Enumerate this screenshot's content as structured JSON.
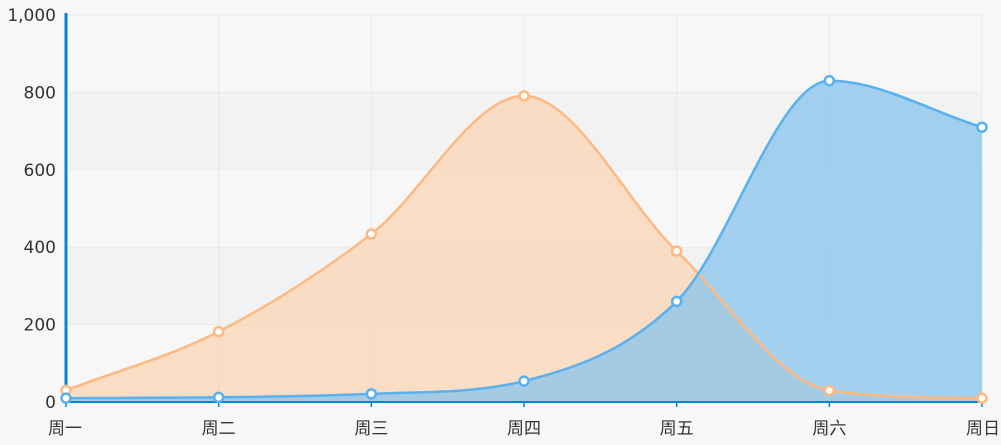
{
  "chart_data": {
    "type": "area",
    "categories": [
      "周一",
      "周二",
      "周三",
      "周四",
      "周五",
      "周六",
      "周日"
    ],
    "ylim": [
      0,
      1000
    ],
    "y_ticks": [
      0,
      200,
      400,
      600,
      800,
      1000
    ],
    "y_tick_labels": [
      "0",
      "200",
      "400",
      "600",
      "800",
      "1,000"
    ],
    "grid": true,
    "smooth": true,
    "legend": "none",
    "series": [
      {
        "values": [
          30,
          182,
          434,
          791,
          390,
          30,
          10
        ],
        "color": "#ffb980",
        "fill": "#f9d4b4"
      },
      {
        "values": [
          10,
          12,
          21,
          54,
          260,
          830,
          710
        ],
        "color": "#5ab1ef",
        "fill": "#88c3ed"
      }
    ],
    "colors": {
      "axis": "#008acd",
      "band_dark": "#f2f2f2",
      "band_light": "#f7f7f7",
      "grid": "#e9e9e9",
      "label": "#333333"
    }
  }
}
